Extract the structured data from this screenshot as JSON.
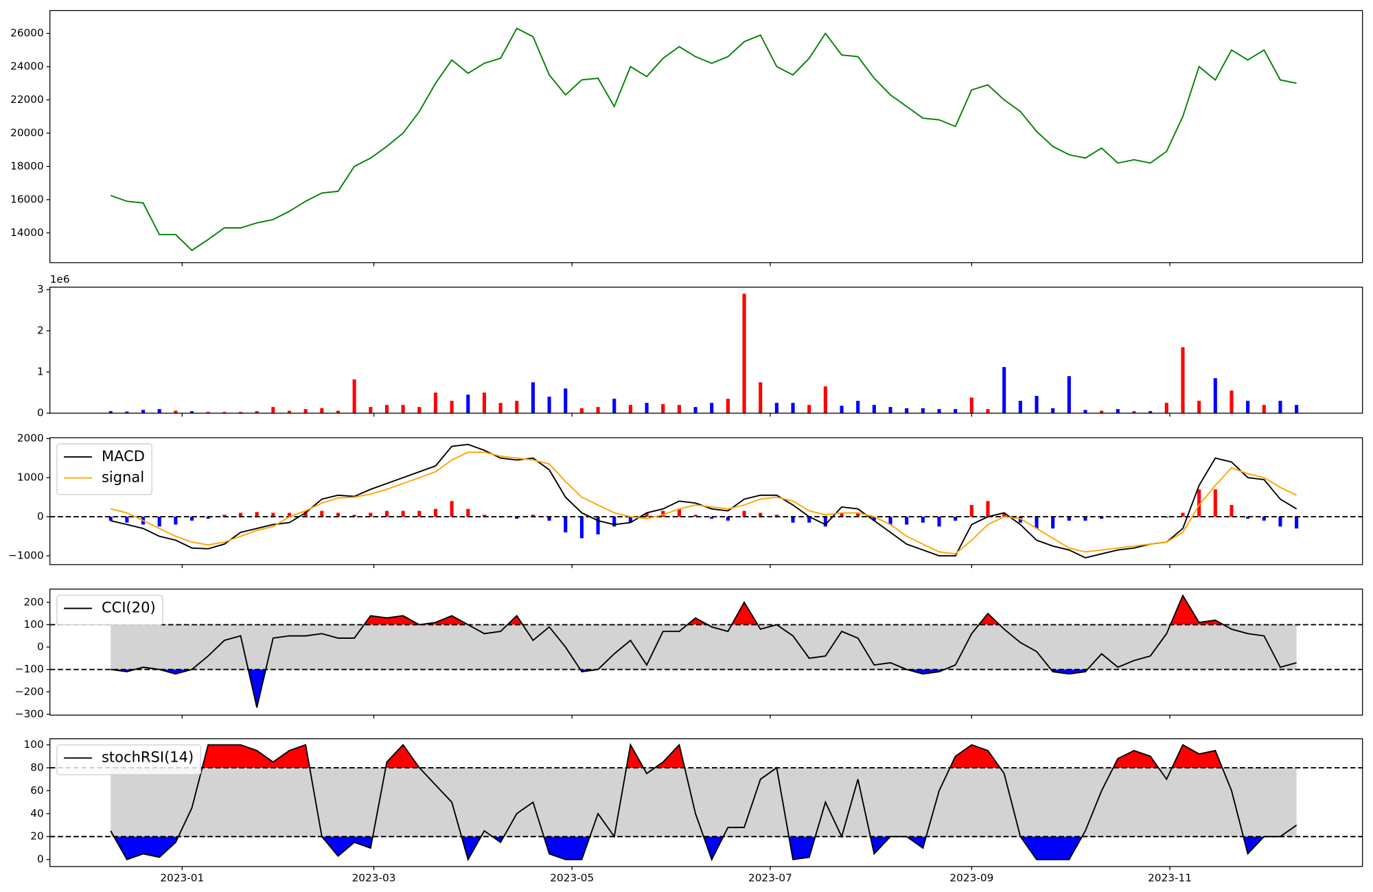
{
  "chart_data": [
    {
      "type": "line",
      "color": "green",
      "x": [
        -22,
        -17,
        -12,
        -7,
        -2,
        3,
        8,
        13,
        18,
        23,
        28,
        33,
        38,
        43,
        48,
        53,
        58,
        63,
        68,
        73,
        78,
        83,
        88,
        93,
        98,
        103,
        108,
        113,
        118,
        123,
        128,
        133,
        138,
        143,
        148,
        153,
        158,
        163,
        168,
        173,
        178,
        183,
        188,
        193,
        198,
        203,
        208,
        213,
        218,
        223,
        228,
        233,
        238,
        243,
        248,
        253,
        258,
        263,
        268,
        273,
        278,
        283,
        288,
        293,
        298,
        303,
        308,
        313,
        318,
        323,
        328,
        333,
        338,
        343
      ],
      "xlim": [
        -40.7,
        363.3
      ],
      "values": [
        16250,
        15900,
        15800,
        13900,
        13900,
        12950,
        13600,
        14300,
        14300,
        14600,
        14800,
        15300,
        15900,
        16400,
        16500,
        18000,
        18500,
        19200,
        20000,
        21300,
        23000,
        24400,
        23600,
        24200,
        24500,
        26300,
        25800,
        23500,
        22300,
        23200,
        23300,
        21600,
        24000,
        23400,
        24500,
        25200,
        24600,
        24200,
        24600,
        25500,
        25900,
        24000,
        23500,
        24500,
        26000,
        24700,
        24600,
        23300,
        22300,
        21600,
        20900,
        20800,
        20400,
        22600,
        22900,
        22000,
        21300,
        20100,
        19200,
        18700,
        18500,
        19100,
        18200,
        18400,
        18200,
        18900,
        21000,
        24000,
        23200,
        25000,
        24400,
        25000,
        23200,
        23000
      ],
      "ylim": [
        12210,
        27370
      ],
      "yticks": [
        14000,
        16000,
        18000,
        20000,
        22000,
        24000,
        26000
      ]
    },
    {
      "type": "bar",
      "offset_text": "1e6",
      "up_color": "red",
      "down_color": "blue",
      "values": [
        0.05,
        0.04,
        0.08,
        0.1,
        0.06,
        0.05,
        0.03,
        0.03,
        0.03,
        0.05,
        0.15,
        0.06,
        0.1,
        0.12,
        0.06,
        0.82,
        0.15,
        0.2,
        0.2,
        0.15,
        0.5,
        0.3,
        0.45,
        0.5,
        0.25,
        0.3,
        0.75,
        0.4,
        0.6,
        0.12,
        0.15,
        0.35,
        0.2,
        0.25,
        0.22,
        0.2,
        0.15,
        0.25,
        0.35,
        2.9,
        0.75,
        0.25,
        0.25,
        0.2,
        0.65,
        0.18,
        0.3,
        0.2,
        0.15,
        0.12,
        0.12,
        0.1,
        0.1,
        0.38,
        0.1,
        1.12,
        0.3,
        0.42,
        0.12,
        0.9,
        0.08,
        0.06,
        0.1,
        0.05,
        0.05,
        0.25,
        1.6,
        0.3,
        0.85,
        0.55,
        0.3,
        0.2,
        0.3,
        0.2
      ],
      "ylim": [
        0,
        3.06
      ],
      "yticks": [
        0,
        1,
        2,
        3
      ]
    },
    {
      "type": "macd",
      "legend": "upper left",
      "series": [
        {
          "name": "MACD",
          "color": "black",
          "values": [
            -100,
            -200,
            -300,
            -500,
            -600,
            -800,
            -820,
            -700,
            -400,
            -300,
            -200,
            -150,
            100,
            450,
            550,
            520,
            700,
            850,
            1000,
            1150,
            1300,
            1800,
            1850,
            1700,
            1500,
            1450,
            1500,
            1200,
            500,
            100,
            -100,
            -200,
            -150,
            100,
            200,
            400,
            350,
            200,
            150,
            450,
            550,
            550,
            300,
            0,
            -200,
            250,
            200,
            -100,
            -400,
            -700,
            -850,
            -1000,
            -1000,
            -200,
            0,
            100,
            -200,
            -600,
            -750,
            -850,
            -1050,
            -950,
            -850,
            -800,
            -700,
            -650,
            -300,
            800,
            1500,
            1400,
            1000,
            950,
            450,
            200
          ]
        },
        {
          "name": "signal",
          "color": "orange",
          "values": [
            200,
            100,
            -100,
            -300,
            -500,
            -650,
            -720,
            -650,
            -500,
            -350,
            -250,
            0,
            150,
            350,
            480,
            500,
            580,
            700,
            850,
            1000,
            1150,
            1450,
            1650,
            1650,
            1550,
            1500,
            1450,
            1350,
            900,
            500,
            300,
            100,
            0,
            -50,
            50,
            200,
            300,
            250,
            200,
            300,
            450,
            500,
            400,
            150,
            50,
            100,
            100,
            0,
            -200,
            -500,
            -700,
            -900,
            -950,
            -600,
            -200,
            0,
            -50,
            -300,
            -550,
            -800,
            -900,
            -850,
            -800,
            -750,
            -700,
            -650,
            -400,
            300,
            800,
            1250,
            1100,
            1000,
            750,
            550
          ]
        }
      ],
      "histogram": {
        "positive_color": "red",
        "negative_color": "blue",
        "values": [
          -100,
          -150,
          -200,
          -250,
          -200,
          -100,
          -50,
          50,
          100,
          120,
          100,
          100,
          150,
          150,
          100,
          50,
          100,
          150,
          150,
          150,
          200,
          400,
          200,
          50,
          -20,
          -50,
          50,
          -100,
          -400,
          -550,
          -450,
          -250,
          -150,
          100,
          150,
          200,
          50,
          -50,
          -100,
          150,
          100,
          50,
          -150,
          -150,
          -250,
          100,
          100,
          -100,
          -200,
          -200,
          -150,
          -250,
          -100,
          300,
          400,
          100,
          -150,
          -300,
          -300,
          -100,
          -100,
          -50,
          -20,
          -20,
          0,
          -20,
          100,
          700,
          700,
          300,
          -50,
          -100,
          -250,
          -300
        ]
      },
      "levels": [
        0
      ],
      "ylim": [
        -1224,
        2022
      ],
      "yticks": [
        {
          "value": -1000,
          "label": "−1000"
        },
        0,
        1000,
        2000
      ]
    },
    {
      "type": "oscillator",
      "legend": "upper left",
      "band_color": "lightgray",
      "above_color": "red",
      "below_color": "blue",
      "series": [
        {
          "name": "CCI(20)",
          "color": "black",
          "values": [
            -100,
            -110,
            -90,
            -100,
            -120,
            -100,
            -40,
            30,
            50,
            -270,
            40,
            50,
            50,
            60,
            40,
            40,
            140,
            130,
            140,
            100,
            110,
            140,
            100,
            60,
            70,
            140,
            30,
            90,
            0,
            -110,
            -100,
            -30,
            30,
            -80,
            70,
            70,
            130,
            90,
            70,
            200,
            80,
            100,
            50,
            -50,
            -40,
            70,
            40,
            -80,
            -70,
            -100,
            -120,
            -110,
            -80,
            60,
            150,
            80,
            20,
            -20,
            -110,
            -120,
            -110,
            -30,
            -90,
            -60,
            -40,
            60,
            230,
            110,
            120,
            80,
            60,
            50,
            -90,
            -70
          ]
        }
      ],
      "levels": [
        100,
        -100
      ],
      "ylim": [
        -304,
        259
      ],
      "yticks": [
        {
          "value": -300,
          "label": "−300"
        },
        {
          "value": -200,
          "label": "−200"
        },
        {
          "value": -100,
          "label": "−100"
        },
        0,
        100,
        200
      ]
    },
    {
      "type": "oscillator",
      "legend": "upper left",
      "band_color": "lightgray",
      "above_color": "red",
      "below_color": "blue",
      "series": [
        {
          "name": "stochRSI(14)",
          "color": "black",
          "values": [
            25,
            0,
            5,
            2,
            15,
            45,
            100,
            100,
            100,
            95,
            85,
            95,
            100,
            20,
            3,
            15,
            10,
            85,
            100,
            80,
            65,
            50,
            0,
            25,
            15,
            40,
            50,
            5,
            0,
            0,
            40,
            20,
            100,
            75,
            85,
            100,
            40,
            0,
            28,
            28,
            70,
            80,
            0,
            2,
            50,
            20,
            70,
            5,
            20,
            20,
            10,
            60,
            90,
            100,
            95,
            75,
            20,
            0,
            0,
            0,
            25,
            60,
            88,
            95,
            90,
            70,
            100,
            92,
            95,
            60,
            5,
            20,
            20,
            30
          ]
        }
      ],
      "levels": [
        80,
        20
      ],
      "ylim": [
        -6.1,
        105.3
      ],
      "yticks": [
        0,
        20,
        40,
        60,
        80,
        100
      ],
      "xticks": [
        {
          "value": 0,
          "label": "2023-01"
        },
        {
          "value": 59,
          "label": "2023-03"
        },
        {
          "value": 120,
          "label": "2023-05"
        },
        {
          "value": 181,
          "label": "2023-07"
        },
        {
          "value": 243,
          "label": "2023-09"
        },
        {
          "value": 304,
          "label": "2023-11"
        }
      ]
    }
  ]
}
